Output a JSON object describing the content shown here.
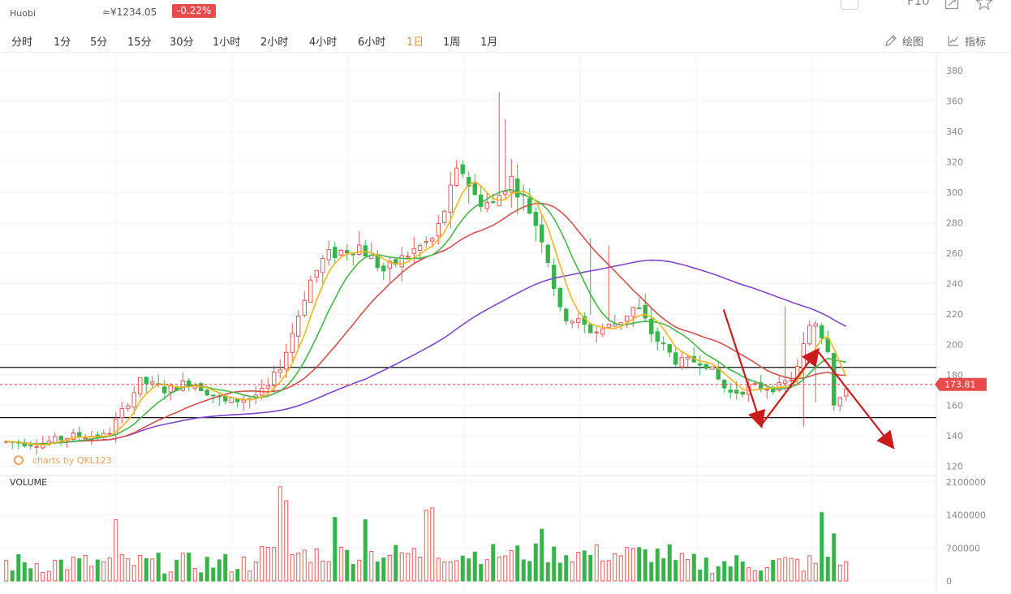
{
  "header": {
    "pair": "",
    "price": "",
    "exchange": "Huobi",
    "cny_price": "≈¥1234.05",
    "change": "-0.22%",
    "params_button": "",
    "f10": "F10"
  },
  "toolbar": {
    "timeframes": [
      "分时",
      "1分",
      "5分",
      "15分",
      "30分",
      "1小时",
      "2小时",
      "4小时",
      "6小时",
      "1日",
      "1周",
      "1月"
    ],
    "active": "1日",
    "draw_label": "绘图",
    "indicator_label": "指标"
  },
  "colors": {
    "up": "#e45a5a",
    "down": "#38b24a",
    "ma5": "#f2b61f",
    "ma10": "#45b649",
    "ma20": "#d0524f",
    "ma60": "#7f47c9",
    "price_tag": "#e84b4b",
    "annotation": "#cc1b1b",
    "accent": "#ee8a2b"
  },
  "chart_data": {
    "type": "candlestick",
    "price_axis": {
      "ticks": [
        120,
        140,
        160,
        180,
        200,
        220,
        240,
        260,
        280,
        300,
        320,
        340,
        360,
        380
      ],
      "range": [
        115,
        388
      ]
    },
    "volume_axis": {
      "label": "VOLUME",
      "ticks": [
        0,
        700000,
        1400000,
        2100000
      ],
      "tick_labels": [
        "0",
        "700000",
        "1400000",
        "2100000"
      ],
      "range": [
        0,
        2100000
      ]
    },
    "current_price": {
      "value": 173.81,
      "label": "173.81"
    },
    "support_line": 152,
    "resistance_line": 185,
    "watermark": "charts by QKL123",
    "annotation_arrow": {
      "points": [
        [
          0.67,
          223
        ],
        [
          0.71,
          147
        ],
        [
          0.77,
          196
        ],
        [
          0.85,
          133
        ]
      ]
    },
    "price_anchors": [
      [
        0,
        136
      ],
      [
        0.04,
        135
      ],
      [
        0.08,
        140
      ],
      [
        0.12,
        140
      ],
      [
        0.16,
        176
      ],
      [
        0.19,
        170
      ],
      [
        0.22,
        176
      ],
      [
        0.26,
        162
      ],
      [
        0.29,
        165
      ],
      [
        0.31,
        170
      ],
      [
        0.33,
        190
      ],
      [
        0.36,
        240
      ],
      [
        0.38,
        258
      ],
      [
        0.42,
        265
      ],
      [
        0.45,
        248
      ],
      [
        0.48,
        260
      ],
      [
        0.51,
        270
      ],
      [
        0.54,
        318
      ],
      [
        0.56,
        295
      ],
      [
        0.58,
        292
      ],
      [
        0.6,
        310
      ],
      [
        0.62,
        292
      ],
      [
        0.64,
        268
      ],
      [
        0.66,
        220
      ],
      [
        0.68,
        215
      ],
      [
        0.7,
        208
      ],
      [
        0.73,
        215
      ],
      [
        0.75,
        226
      ],
      [
        0.77,
        206
      ],
      [
        0.8,
        188
      ],
      [
        0.83,
        190
      ],
      [
        0.86,
        168
      ],
      [
        0.89,
        172
      ],
      [
        0.92,
        172
      ],
      [
        0.94,
        180
      ],
      [
        0.96,
        220
      ],
      [
        0.98,
        196
      ],
      [
        0.985,
        162
      ],
      [
        1.0,
        168
      ]
    ],
    "tail_anchors": [
      [
        0,
        168
      ],
      [
        0.3,
        175
      ],
      [
        0.55,
        180
      ],
      [
        0.7,
        183
      ],
      [
        0.85,
        178
      ],
      [
        1.0,
        175
      ]
    ],
    "volume_spikes": [
      [
        18,
        1300000
      ],
      [
        45,
        2000000
      ],
      [
        46,
        1700000
      ],
      [
        54,
        1350000
      ],
      [
        59,
        1300000
      ],
      [
        69,
        1500000
      ],
      [
        70,
        1550000
      ],
      [
        88,
        1100000
      ],
      [
        134,
        1450000
      ],
      [
        136,
        1000000
      ]
    ]
  }
}
